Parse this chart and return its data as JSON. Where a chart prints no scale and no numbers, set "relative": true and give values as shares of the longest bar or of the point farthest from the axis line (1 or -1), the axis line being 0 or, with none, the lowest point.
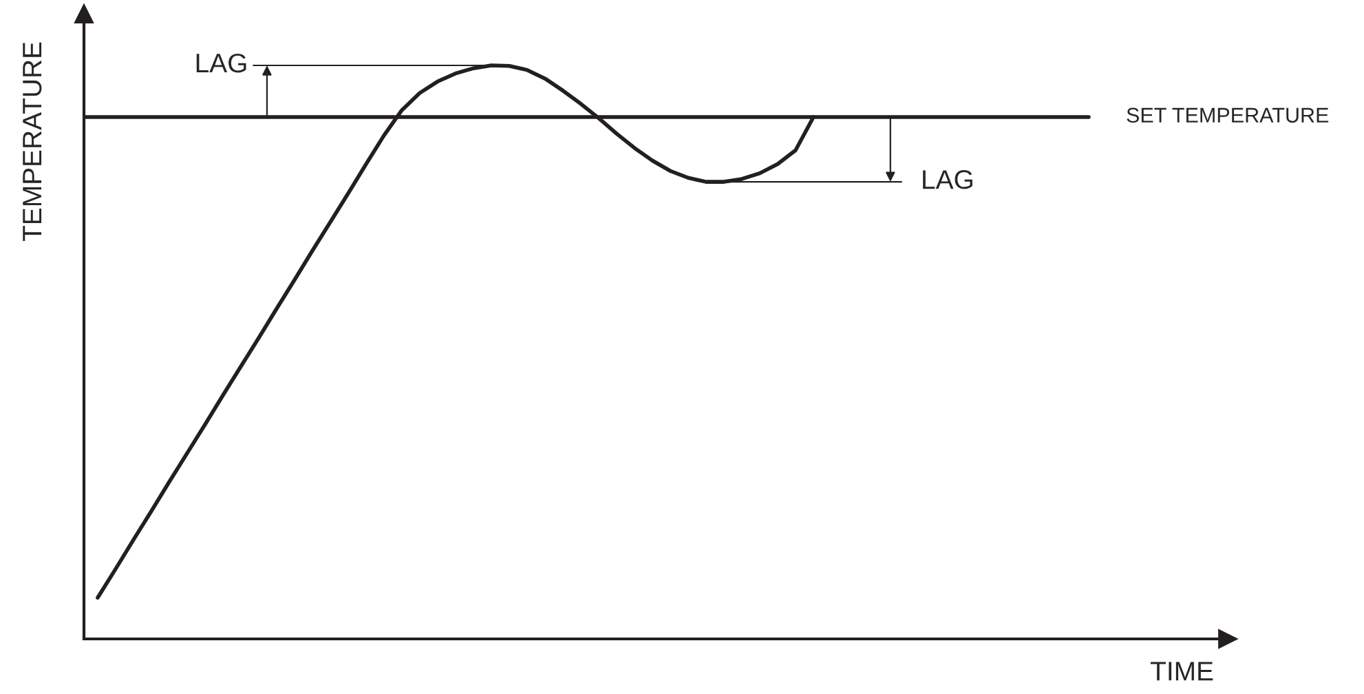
{
  "chart_data": {
    "type": "line",
    "relative": true,
    "ylabel": "TEMPERATURE",
    "categories": [
      null,
      null,
      null,
      null,
      null,
      null,
      null,
      null,
      null,
      null,
      null,
      null,
      null,
      null,
      null,
      null,
      null,
      null,
      null,
      null,
      null,
      null,
      null,
      null,
      null,
      null,
      null,
      null,
      null,
      null,
      null,
      null,
      null,
      null,
      null,
      null,
      null,
      null,
      null,
      null,
      null
    ],
    "series": [
      {
        "color": "#231f20",
        "values": [
          0.072,
          0.122,
          0.173,
          0.223,
          0.274,
          0.324,
          0.374,
          0.425,
          0.475,
          0.525,
          0.576,
          0.626,
          0.677,
          0.727,
          0.777,
          0.828,
          0.878,
          0.922,
          0.952,
          0.972,
          0.986,
          0.995,
          1.0,
          0.999,
          0.992,
          0.977,
          0.956,
          0.933,
          0.908,
          0.881,
          0.856,
          0.834,
          0.816,
          0.804,
          0.797,
          0.797,
          0.802,
          0.812,
          0.828,
          0.852,
          0.91
        ]
      }
    ],
    "ref_lines": [
      {
        "axis": "y",
        "value": 0.91,
        "label": "SET TEMPERATURE",
        "color": "#231f20"
      }
    ],
    "annotations": [
      "LAG",
      "LAG",
      "TIME"
    ],
    "legend": false,
    "marker": "none",
    "line_style": "solid"
  }
}
